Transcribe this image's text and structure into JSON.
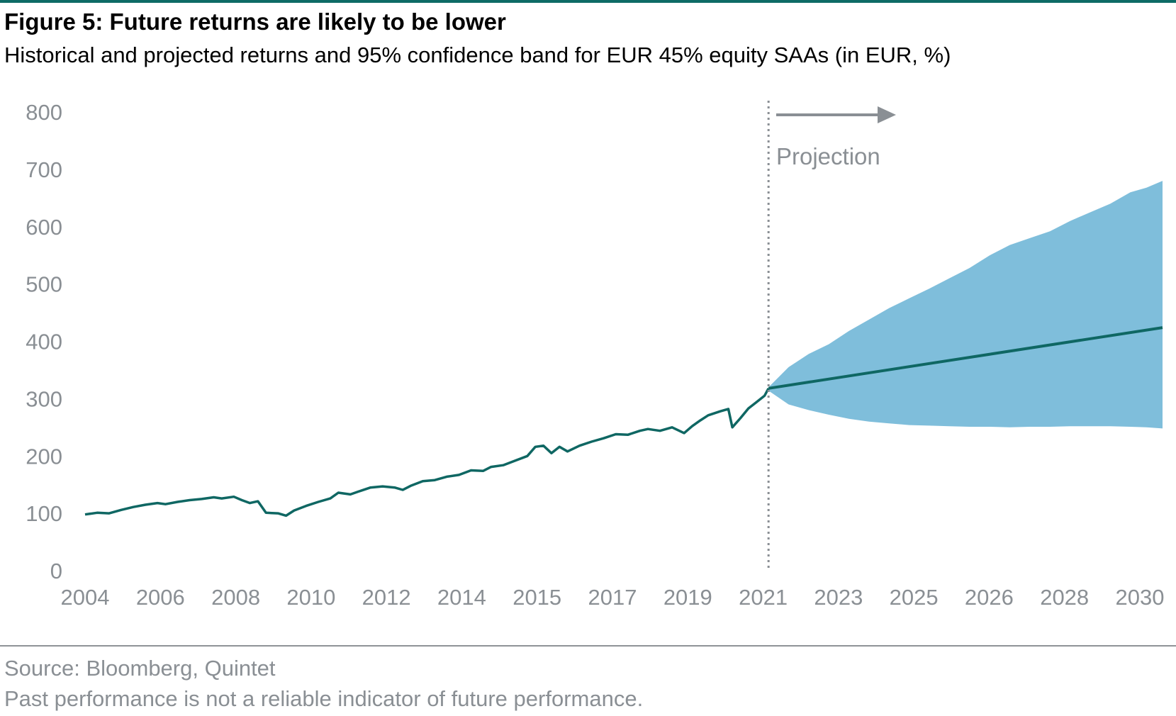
{
  "header": {
    "title": "Figure 5: Future returns are likely to be lower",
    "subtitle": "Historical and projected returns and 95% confidence band for EUR 45% equity SAAs (in EUR, %)"
  },
  "footer": {
    "source": "Source: Bloomberg, Quintet",
    "disclaimer": "Past performance is not a reliable indicator of future performance."
  },
  "colors": {
    "rule": "#0e6b66",
    "line": "#0f6763",
    "band": "#7fbedb",
    "axis_text": "#8a8f94",
    "marker": "#8a8f94"
  },
  "chart_data": {
    "type": "line",
    "title": "Figure 5: Future returns are likely to be lower",
    "subtitle": "Historical and projected returns and 95% confidence band for EUR 45% equity SAAs (in EUR, %)",
    "xlabel": "",
    "ylabel": "",
    "ylim": [
      0,
      800
    ],
    "y_ticks": [
      0,
      100,
      200,
      300,
      400,
      500,
      600,
      700,
      800
    ],
    "x_tick_labels": [
      "2004",
      "2006",
      "2008",
      "2010",
      "2012",
      "2014",
      "2015",
      "2017",
      "2019",
      "2021",
      "2023",
      "2025",
      "2026",
      "2028",
      "2030"
    ],
    "x_domain": [
      2004.0,
      2030.8
    ],
    "grid": false,
    "legend": "none",
    "projection_start": 2021.0,
    "annotation": "Projection",
    "historical": [
      [
        2004.0,
        98
      ],
      [
        2004.3,
        101
      ],
      [
        2004.6,
        100
      ],
      [
        2004.9,
        106
      ],
      [
        2005.2,
        111
      ],
      [
        2005.5,
        115
      ],
      [
        2005.8,
        118
      ],
      [
        2006.0,
        116
      ],
      [
        2006.3,
        120
      ],
      [
        2006.6,
        123
      ],
      [
        2006.9,
        125
      ],
      [
        2007.2,
        128
      ],
      [
        2007.4,
        126
      ],
      [
        2007.7,
        129
      ],
      [
        2007.9,
        123
      ],
      [
        2008.1,
        118
      ],
      [
        2008.3,
        121
      ],
      [
        2008.5,
        101
      ],
      [
        2008.8,
        100
      ],
      [
        2009.0,
        96
      ],
      [
        2009.2,
        105
      ],
      [
        2009.5,
        113
      ],
      [
        2009.8,
        120
      ],
      [
        2010.1,
        126
      ],
      [
        2010.3,
        136
      ],
      [
        2010.6,
        133
      ],
      [
        2010.8,
        138
      ],
      [
        2011.1,
        145
      ],
      [
        2011.4,
        147
      ],
      [
        2011.7,
        145
      ],
      [
        2011.9,
        141
      ],
      [
        2012.1,
        148
      ],
      [
        2012.4,
        156
      ],
      [
        2012.7,
        158
      ],
      [
        2013.0,
        164
      ],
      [
        2013.3,
        167
      ],
      [
        2013.6,
        175
      ],
      [
        2013.9,
        174
      ],
      [
        2014.1,
        181
      ],
      [
        2014.4,
        184
      ],
      [
        2014.7,
        192
      ],
      [
        2015.0,
        200
      ],
      [
        2015.2,
        216
      ],
      [
        2015.4,
        218
      ],
      [
        2015.6,
        205
      ],
      [
        2015.8,
        216
      ],
      [
        2016.0,
        208
      ],
      [
        2016.3,
        218
      ],
      [
        2016.6,
        225
      ],
      [
        2016.9,
        231
      ],
      [
        2017.2,
        238
      ],
      [
        2017.5,
        237
      ],
      [
        2017.8,
        244
      ],
      [
        2018.0,
        247
      ],
      [
        2018.3,
        244
      ],
      [
        2018.6,
        250
      ],
      [
        2018.9,
        240
      ],
      [
        2019.1,
        252
      ],
      [
        2019.3,
        262
      ],
      [
        2019.5,
        271
      ],
      [
        2019.8,
        278
      ],
      [
        2020.0,
        282
      ],
      [
        2020.1,
        250
      ],
      [
        2020.3,
        266
      ],
      [
        2020.5,
        283
      ],
      [
        2020.7,
        294
      ],
      [
        2020.9,
        305
      ],
      [
        2021.0,
        318
      ]
    ],
    "projection_median": [
      [
        2021.0,
        318
      ],
      [
        2030.8,
        424
      ]
    ],
    "band_upper": [
      [
        2021.0,
        320
      ],
      [
        2021.5,
        355
      ],
      [
        2022.0,
        378
      ],
      [
        2022.5,
        395
      ],
      [
        2023.0,
        418
      ],
      [
        2023.5,
        438
      ],
      [
        2024.0,
        458
      ],
      [
        2024.5,
        475
      ],
      [
        2025.0,
        492
      ],
      [
        2025.5,
        510
      ],
      [
        2026.0,
        528
      ],
      [
        2026.5,
        550
      ],
      [
        2027.0,
        568
      ],
      [
        2027.5,
        580
      ],
      [
        2028.0,
        592
      ],
      [
        2028.5,
        610
      ],
      [
        2029.0,
        625
      ],
      [
        2029.5,
        640
      ],
      [
        2030.0,
        660
      ],
      [
        2030.4,
        668
      ],
      [
        2030.8,
        680
      ]
    ],
    "band_lower": [
      [
        2021.0,
        314
      ],
      [
        2021.5,
        290
      ],
      [
        2022.0,
        280
      ],
      [
        2022.5,
        272
      ],
      [
        2023.0,
        265
      ],
      [
        2023.5,
        260
      ],
      [
        2024.0,
        257
      ],
      [
        2024.5,
        254
      ],
      [
        2025.0,
        253
      ],
      [
        2025.5,
        252
      ],
      [
        2026.0,
        251
      ],
      [
        2026.5,
        251
      ],
      [
        2027.0,
        250
      ],
      [
        2027.5,
        251
      ],
      [
        2028.0,
        251
      ],
      [
        2028.5,
        252
      ],
      [
        2029.0,
        252
      ],
      [
        2029.5,
        252
      ],
      [
        2030.0,
        251
      ],
      [
        2030.4,
        250
      ],
      [
        2030.8,
        248
      ]
    ]
  }
}
